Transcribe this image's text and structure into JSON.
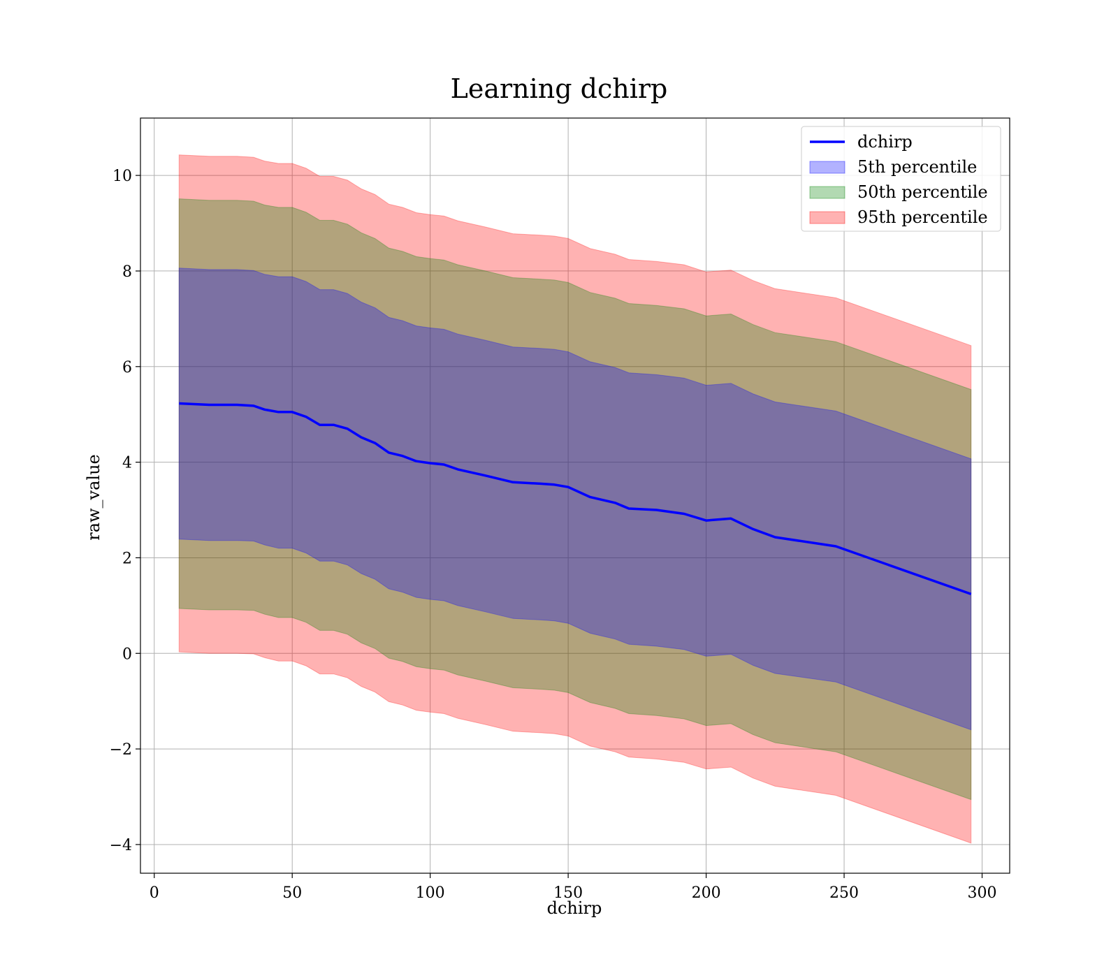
{
  "chart_data": {
    "type": "area",
    "title": "Learning dchirp",
    "xlabel": "dchirp",
    "ylabel": "raw_value",
    "xlim": [
      -5,
      310
    ],
    "ylim": [
      -4.6,
      11.2
    ],
    "xticks": [
      0,
      50,
      100,
      150,
      200,
      250,
      300
    ],
    "xtick_labels": [
      "0",
      "50",
      "100",
      "150",
      "200",
      "250",
      "300"
    ],
    "yticks": [
      -4,
      -2,
      0,
      2,
      4,
      6,
      8,
      10
    ],
    "ytick_labels": [
      "−4",
      "−2",
      "0",
      "2",
      "4",
      "6",
      "8",
      "10"
    ],
    "grid": true,
    "legend_position": "top-right",
    "x": [
      9,
      20,
      30,
      36,
      40,
      45,
      50,
      55,
      60,
      65,
      70,
      75,
      80,
      85,
      90,
      95,
      100,
      105,
      110,
      120,
      130,
      140,
      145,
      150,
      158,
      167,
      172,
      182,
      192,
      200,
      209,
      217,
      225,
      247,
      296
    ],
    "series": [
      {
        "name": "dchirp",
        "kind": "line",
        "color": "#0000ff",
        "values": [
          5.23,
          5.2,
          5.2,
          5.18,
          5.1,
          5.05,
          5.05,
          4.95,
          4.78,
          4.78,
          4.7,
          4.52,
          4.4,
          4.2,
          4.13,
          4.02,
          3.98,
          3.95,
          3.85,
          3.72,
          3.58,
          3.55,
          3.53,
          3.48,
          3.27,
          3.15,
          3.03,
          3.0,
          2.92,
          2.78,
          2.82,
          2.6,
          2.43,
          2.24,
          1.24
        ]
      },
      {
        "name": "5th percentile",
        "kind": "band",
        "color": "#0000ff",
        "lower": [
          2.39,
          2.36,
          2.36,
          2.35,
          2.27,
          2.2,
          2.2,
          2.1,
          1.93,
          1.93,
          1.85,
          1.67,
          1.55,
          1.35,
          1.28,
          1.17,
          1.13,
          1.1,
          1.0,
          0.87,
          0.73,
          0.7,
          0.68,
          0.63,
          0.42,
          0.3,
          0.19,
          0.15,
          0.08,
          -0.06,
          -0.02,
          -0.25,
          -0.42,
          -0.6,
          -1.6
        ],
        "upper": [
          8.06,
          8.03,
          8.03,
          8.01,
          7.93,
          7.88,
          7.88,
          7.78,
          7.61,
          7.61,
          7.53,
          7.35,
          7.23,
          7.03,
          6.96,
          6.85,
          6.81,
          6.78,
          6.68,
          6.55,
          6.41,
          6.38,
          6.36,
          6.31,
          6.1,
          5.98,
          5.87,
          5.83,
          5.76,
          5.61,
          5.65,
          5.43,
          5.26,
          5.07,
          4.07
        ]
      },
      {
        "name": "50th percentile",
        "kind": "band",
        "color": "#008000",
        "lower": [
          0.94,
          0.91,
          0.91,
          0.9,
          0.82,
          0.75,
          0.75,
          0.65,
          0.48,
          0.48,
          0.4,
          0.22,
          0.1,
          -0.1,
          -0.17,
          -0.28,
          -0.32,
          -0.35,
          -0.45,
          -0.58,
          -0.72,
          -0.75,
          -0.77,
          -0.82,
          -1.03,
          -1.15,
          -1.26,
          -1.3,
          -1.37,
          -1.51,
          -1.47,
          -1.7,
          -1.87,
          -2.06,
          -3.06
        ],
        "upper": [
          9.51,
          9.48,
          9.48,
          9.46,
          9.38,
          9.33,
          9.33,
          9.23,
          9.06,
          9.06,
          8.98,
          8.8,
          8.68,
          8.48,
          8.41,
          8.3,
          8.26,
          8.23,
          8.13,
          8.0,
          7.86,
          7.83,
          7.81,
          7.76,
          7.55,
          7.43,
          7.32,
          7.28,
          7.21,
          7.06,
          7.1,
          6.88,
          6.71,
          6.52,
          5.52
        ]
      },
      {
        "name": "95th percentile",
        "kind": "band",
        "color": "#ff0000",
        "lower": [
          0.03,
          0.0,
          0.0,
          -0.01,
          -0.09,
          -0.16,
          -0.16,
          -0.26,
          -0.43,
          -0.43,
          -0.51,
          -0.69,
          -0.81,
          -1.01,
          -1.08,
          -1.19,
          -1.23,
          -1.26,
          -1.36,
          -1.49,
          -1.63,
          -1.66,
          -1.68,
          -1.73,
          -1.94,
          -2.06,
          -2.17,
          -2.21,
          -2.28,
          -2.42,
          -2.38,
          -2.61,
          -2.78,
          -2.97,
          -3.97
        ],
        "upper": [
          10.43,
          10.4,
          10.4,
          10.38,
          10.3,
          10.25,
          10.25,
          10.15,
          9.98,
          9.98,
          9.9,
          9.72,
          9.6,
          9.4,
          9.33,
          9.22,
          9.18,
          9.15,
          9.05,
          8.92,
          8.78,
          8.75,
          8.73,
          8.68,
          8.47,
          8.35,
          8.24,
          8.2,
          8.13,
          7.98,
          8.02,
          7.8,
          7.63,
          7.44,
          6.44
        ]
      }
    ]
  }
}
